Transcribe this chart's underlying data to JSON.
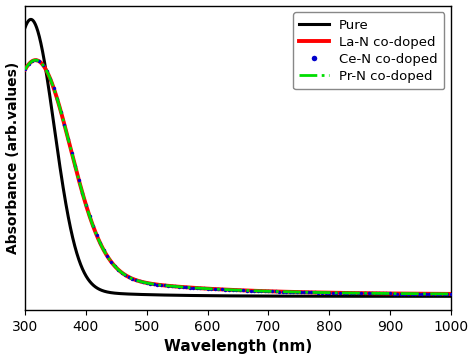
{
  "x_min": 300,
  "x_max": 1000,
  "xlabel": "Wavelength (nm)",
  "ylabel": "Absorbance (arb.values)",
  "xticks": [
    300,
    400,
    500,
    600,
    700,
    800,
    900,
    1000
  ],
  "background_color": "#ffffff",
  "series": [
    {
      "label": "Pure",
      "color": "#000000",
      "linestyle": "solid",
      "linewidth": 2.2,
      "type": "line",
      "zorder": 3,
      "A1": 4.2,
      "mu1": 310,
      "sig1": 38,
      "A2": 0.18,
      "decay2": 0.0095,
      "base": 0.01
    },
    {
      "label": "La-N co-doped",
      "color": "#ff0000",
      "linestyle": "solid",
      "linewidth": 2.8,
      "type": "line",
      "zorder": 4,
      "A1": 3.2,
      "mu1": 320,
      "sig1": 55,
      "A2": 0.55,
      "decay2": 0.006,
      "base": 0.04
    },
    {
      "label": "Ce-N co-doped",
      "color": "#0000cc",
      "linestyle": "none",
      "linewidth": 2.0,
      "type": "scatter",
      "zorder": 5,
      "A1": 3.2,
      "mu1": 320,
      "sig1": 55,
      "A2": 0.55,
      "decay2": 0.006,
      "base": 0.04
    },
    {
      "label": "Pr-N co-doped",
      "color": "#00dd00",
      "linestyle": "dashdot",
      "linewidth": 2.0,
      "type": "line",
      "zorder": 6,
      "A1": 3.2,
      "mu1": 320,
      "sig1": 55,
      "A2": 0.55,
      "decay2": 0.006,
      "base": 0.04
    }
  ],
  "legend_loc": "upper right",
  "legend_fontsize": 9.5,
  "axis_fontsize": 11,
  "tick_fontsize": 10,
  "ylabel_fontsize": 10
}
